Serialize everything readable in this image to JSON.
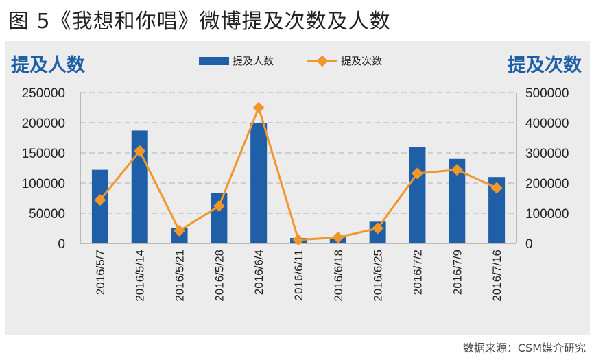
{
  "figure_title": "图 5《我想和你唱》微博提及次数及人数",
  "source": "数据来源：CSM媒介研究",
  "colors": {
    "bar": "#1f5fa8",
    "line": "#f0962a",
    "axis_title": "#1f5fa8",
    "grid": "#b0b0b0"
  },
  "chart_data": {
    "type": "bar",
    "title": "",
    "categories": [
      "2016/5/7",
      "2016/5/14",
      "2016/5/21",
      "2016/5/28",
      "2016/6/4",
      "2016/6/11",
      "2016/6/18",
      "2016/6/25",
      "2016/7/2",
      "2016/7/9",
      "2016/7/16"
    ],
    "ylabel_left": "提及人数",
    "ylabel_right": "提及次数",
    "ylim_left": [
      0,
      250000
    ],
    "ylim_right": [
      0,
      500000
    ],
    "yticks_left": [
      "250000",
      "200000",
      "150000",
      "100000",
      "50000",
      "0"
    ],
    "yticks_right": [
      "500000",
      "400000",
      "300000",
      "200000",
      "100000",
      "0"
    ],
    "grid": true,
    "legend_position": "top-center",
    "series": [
      {
        "name": "提及人数",
        "type": "bar",
        "axis": "left",
        "values": [
          122000,
          187000,
          25000,
          84000,
          200000,
          9000,
          10000,
          36000,
          160000,
          140000,
          110000
        ]
      },
      {
        "name": "提及次数",
        "type": "line",
        "axis": "right",
        "values": [
          144000,
          306000,
          42000,
          124000,
          450000,
          12000,
          20000,
          50000,
          232000,
          244000,
          184000
        ]
      }
    ]
  }
}
